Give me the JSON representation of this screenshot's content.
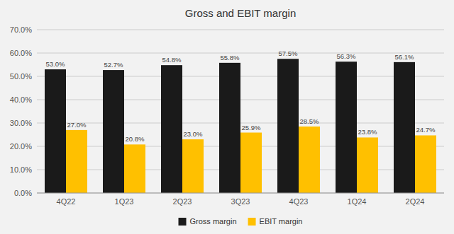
{
  "chart_data": {
    "type": "bar",
    "title": "Gross and EBIT margin",
    "categories": [
      "4Q22",
      "1Q23",
      "2Q23",
      "3Q23",
      "4Q23",
      "1Q24",
      "2Q24"
    ],
    "series": [
      {
        "name": "Gross margin",
        "color": "#1a1a1a",
        "values": [
          53.0,
          52.7,
          54.8,
          55.8,
          57.5,
          56.3,
          56.1
        ],
        "value_labels": [
          "53.0%",
          "52.7%",
          "54.8%",
          "55.8%",
          "57.5%",
          "56.3%",
          "56.1%"
        ]
      },
      {
        "name": "EBIT margin",
        "color": "#FFC000",
        "values": [
          27.0,
          20.8,
          23.0,
          25.9,
          28.5,
          23.8,
          24.7
        ],
        "value_labels": [
          "27.0%",
          "20.8%",
          "23.0%",
          "25.9%",
          "28.5%",
          "23.8%",
          "24.7%"
        ]
      }
    ],
    "ylim": [
      0,
      70
    ],
    "yticks": [
      {
        "value": 0,
        "label": "0.0%"
      },
      {
        "value": 10,
        "label": "10.0%"
      },
      {
        "value": 20,
        "label": "20.0%"
      },
      {
        "value": 30,
        "label": "30.0%"
      },
      {
        "value": 40,
        "label": "40.0%"
      },
      {
        "value": 50,
        "label": "50.0%"
      },
      {
        "value": 60,
        "label": "60.0%"
      },
      {
        "value": 70,
        "label": "70.0%"
      }
    ],
    "grid": true,
    "legend": "bottom",
    "data_labels": true
  }
}
